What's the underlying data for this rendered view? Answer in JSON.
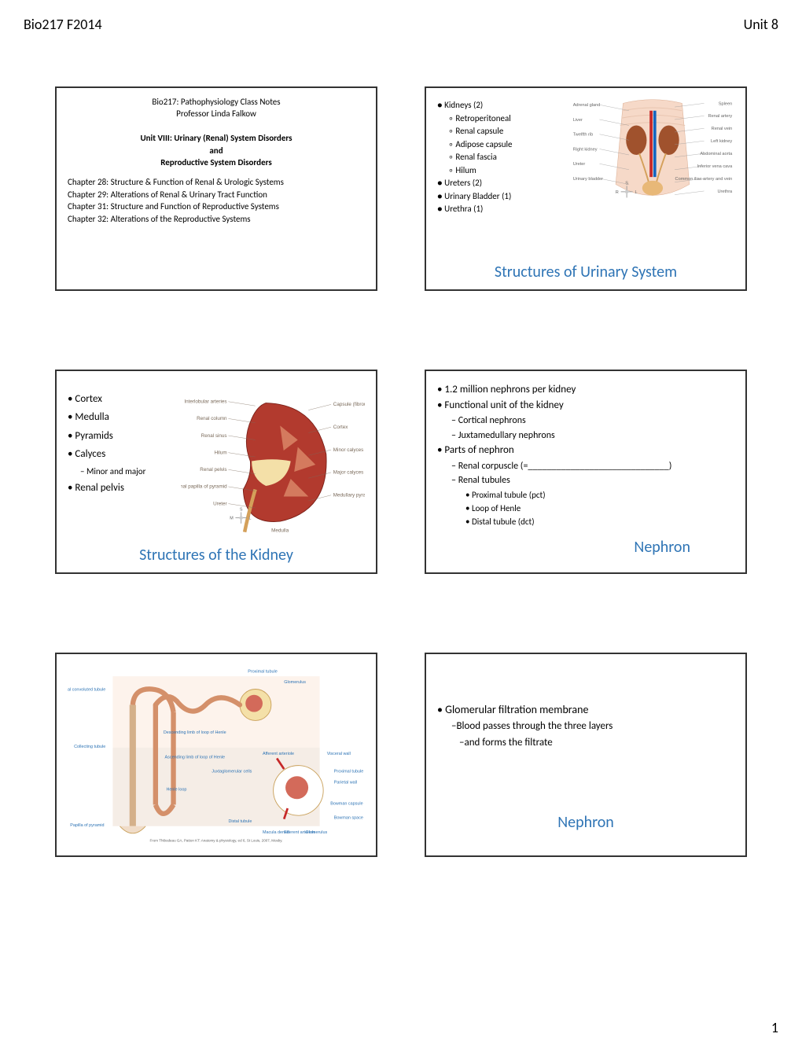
{
  "header": {
    "left": "Bio217  F2014",
    "right": "Unit 8"
  },
  "page_number": "1",
  "colors": {
    "title": "#2e74b5",
    "text": "#000000",
    "border": "#333333",
    "bg": "#ffffff"
  },
  "slide1": {
    "line1": "Bio217:  Pathophysiology Class Notes",
    "line2": "Professor Linda Falkow",
    "unit_title1": "Unit VIII:  Urinary (Renal) System Disorders",
    "unit_title2": "and",
    "unit_title3": "Reproductive System Disorders",
    "ch28": "Chapter 28:  Structure & Function of Renal & Urologic Systems",
    "ch29": "Chapter 29:  Alterations of Renal & Urinary Tract Function",
    "ch31": "Chapter 31:  Structure and Function of Reproductive Systems",
    "ch32": "Chapter 32:  Alterations of the Reproductive Systems"
  },
  "slide2": {
    "title": "Structures of Urinary System",
    "list": [
      {
        "lvl": "b1",
        "t": "Kidneys (2)"
      },
      {
        "lvl": "b2",
        "t": "Retroperitoneal"
      },
      {
        "lvl": "b2",
        "t": "Renal capsule"
      },
      {
        "lvl": "b2",
        "t": "Adipose capsule"
      },
      {
        "lvl": "b2",
        "t": "Renal fascia"
      },
      {
        "lvl": "b2",
        "t": "Hilum"
      },
      {
        "lvl": "b1",
        "t": "Ureters (2)"
      },
      {
        "lvl": "b1",
        "t": "Urinary Bladder (1)"
      },
      {
        "lvl": "b1",
        "t": "Urethra (1)"
      }
    ],
    "labels_left": [
      "Adrenal gland",
      "Liver",
      "Twelfth rib",
      "Right kidney",
      "Ureter",
      "Urinary bladder"
    ],
    "labels_right": [
      "Spleen",
      "Renal artery",
      "Renal vein",
      "Left kidney",
      "Abdominal aorta",
      "Inferior vena cava",
      "Common iliac artery and vein",
      "Urethra"
    ],
    "compass": {
      "s": "S",
      "r": "R",
      "l": "L"
    }
  },
  "slide3": {
    "title": "Structures of the Kidney",
    "list": [
      {
        "lvl": "b1",
        "t": "Cortex"
      },
      {
        "lvl": "b1",
        "t": "Medulla"
      },
      {
        "lvl": "b1",
        "t": "Pyramids"
      },
      {
        "lvl": "b1",
        "t": "Calyces"
      },
      {
        "lvl": "b2",
        "t": "Minor and major"
      },
      {
        "lvl": "b1",
        "t": "Renal pelvis"
      }
    ],
    "labels_left": [
      "Interlobular arteries",
      "Renal column",
      "Renal sinus",
      "Hilum",
      "Renal pelvis",
      "Renal papilla of pyramid",
      "Ureter"
    ],
    "labels_right": [
      "Capsule (fibrous)",
      "Cortex",
      "Minor calyces",
      "Major calyces",
      "Medullary pyramid"
    ],
    "medulla_label": "Medulla",
    "compass": {
      "s": "S",
      "m": "M",
      "l": "L"
    }
  },
  "slide4": {
    "title": "Nephron",
    "list": [
      {
        "lvl": "b1",
        "t": "1.2 million nephrons per kidney"
      },
      {
        "lvl": "b1",
        "t": "Functional unit of the kidney"
      },
      {
        "lvl": "b2",
        "t": "Cortical nephrons"
      },
      {
        "lvl": "b2",
        "t": "Juxtamedullary nephrons"
      },
      {
        "lvl": "b1",
        "t": "Parts of nephron"
      },
      {
        "lvl": "b2",
        "t": "Renal corpuscle (=______________________________)"
      },
      {
        "lvl": "b2",
        "t": "Renal tubules"
      },
      {
        "lvl": "b3",
        "t": "Proximal tubule (pct)"
      },
      {
        "lvl": "b3",
        "t": "Loop of Henle"
      },
      {
        "lvl": "b3",
        "t": "Distal tubule (dct)"
      }
    ]
  },
  "slide5": {
    "labels": [
      "Proximal tubule",
      "Glomerulus",
      "Distal convoluted tubule",
      "Descending limb of loop of Henle",
      "Ascending limb of loop of Henle",
      "Collecting tubule",
      "Afferent arteriole",
      "Visceral wall",
      "Parietal wall",
      "Juxtaglomerular cells",
      "Henle loop",
      "Distal tubule",
      "Macula densa",
      "Efferent arteriole",
      "Glomerulus",
      "Bowman capsule",
      "Bowman space",
      "Proximal tubule",
      "Papilla of pyramid"
    ],
    "credit": "From Thibodeau GA, Patton KT: Anatomy & physiology, ed 6, St Louis, 2007, Mosby."
  },
  "slide6": {
    "title": "Nephron",
    "b1": "Glomerular filtration membrane",
    "b2a": "Blood passes through the three layers",
    "b2b": "and forms the filtrate"
  }
}
